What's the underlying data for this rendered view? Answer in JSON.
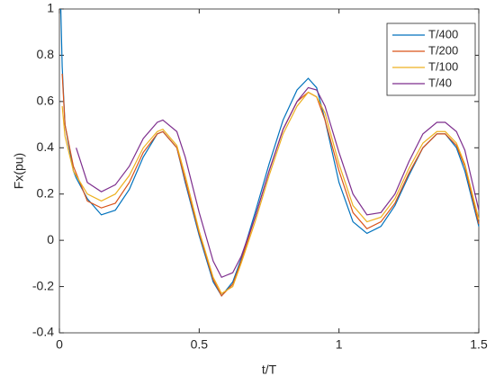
{
  "chart_data": {
    "type": "line",
    "xlabel": "t/T",
    "ylabel": "Fx(pu)",
    "x": [
      0.005,
      0.01,
      0.02,
      0.05,
      0.06,
      0.1,
      0.15,
      0.2,
      0.25,
      0.3,
      0.35,
      0.37,
      0.42,
      0.45,
      0.5,
      0.55,
      0.58,
      0.62,
      0.65,
      0.7,
      0.75,
      0.8,
      0.85,
      0.89,
      0.92,
      0.95,
      1.0,
      1.05,
      1.1,
      1.15,
      1.2,
      1.25,
      1.3,
      1.35,
      1.38,
      1.42,
      1.45,
      1.5
    ],
    "series": [
      {
        "name": "T/400",
        "color": "#0072bd",
        "values": [
          1.0,
          0.75,
          0.5,
          0.3,
          0.27,
          0.18,
          0.11,
          0.13,
          0.22,
          0.36,
          0.46,
          0.47,
          0.4,
          0.25,
          0.02,
          -0.18,
          -0.24,
          -0.18,
          -0.08,
          0.12,
          0.33,
          0.52,
          0.65,
          0.7,
          0.66,
          0.52,
          0.25,
          0.08,
          0.03,
          0.06,
          0.15,
          0.28,
          0.4,
          0.46,
          0.46,
          0.4,
          0.3,
          0.06
        ]
      },
      {
        "name": "T/200",
        "color": "#d95319",
        "values": [
          null,
          0.72,
          0.5,
          0.32,
          0.29,
          0.17,
          0.14,
          0.16,
          0.25,
          0.38,
          0.46,
          0.47,
          0.4,
          0.26,
          0.03,
          -0.17,
          -0.24,
          -0.19,
          -0.09,
          0.1,
          0.3,
          0.48,
          0.6,
          0.64,
          0.62,
          0.52,
          0.3,
          0.12,
          0.05,
          0.08,
          0.16,
          0.29,
          0.4,
          0.46,
          0.46,
          0.41,
          0.32,
          0.07
        ]
      },
      {
        "name": "T/100",
        "color": "#edb120",
        "values": [
          null,
          0.58,
          0.45,
          0.3,
          0.28,
          0.2,
          0.17,
          0.2,
          0.28,
          0.4,
          0.47,
          0.48,
          0.41,
          0.28,
          0.04,
          -0.16,
          -0.23,
          -0.2,
          -0.1,
          0.08,
          0.28,
          0.46,
          0.58,
          0.64,
          0.62,
          0.55,
          0.33,
          0.15,
          0.08,
          0.1,
          0.18,
          0.31,
          0.42,
          0.47,
          0.47,
          0.42,
          0.33,
          0.09
        ]
      },
      {
        "name": "T/40",
        "color": "#7e2f8e",
        "values": [
          null,
          null,
          null,
          null,
          0.4,
          0.25,
          0.21,
          0.24,
          0.32,
          0.44,
          0.51,
          0.52,
          0.47,
          0.36,
          0.12,
          -0.09,
          -0.16,
          -0.14,
          -0.07,
          0.1,
          0.3,
          0.48,
          0.6,
          0.66,
          0.65,
          0.58,
          0.38,
          0.2,
          0.11,
          0.12,
          0.2,
          0.34,
          0.46,
          0.51,
          0.51,
          0.47,
          0.39,
          0.13
        ]
      }
    ],
    "xlim": [
      0,
      1.5
    ],
    "xticks": [
      0,
      0.5,
      1,
      1.5
    ],
    "ylim": [
      -0.4,
      1
    ],
    "yticks": [
      -0.4,
      -0.2,
      0,
      0.2,
      0.4,
      0.6,
      0.8,
      1
    ],
    "grid": false,
    "legend": "northeast"
  }
}
